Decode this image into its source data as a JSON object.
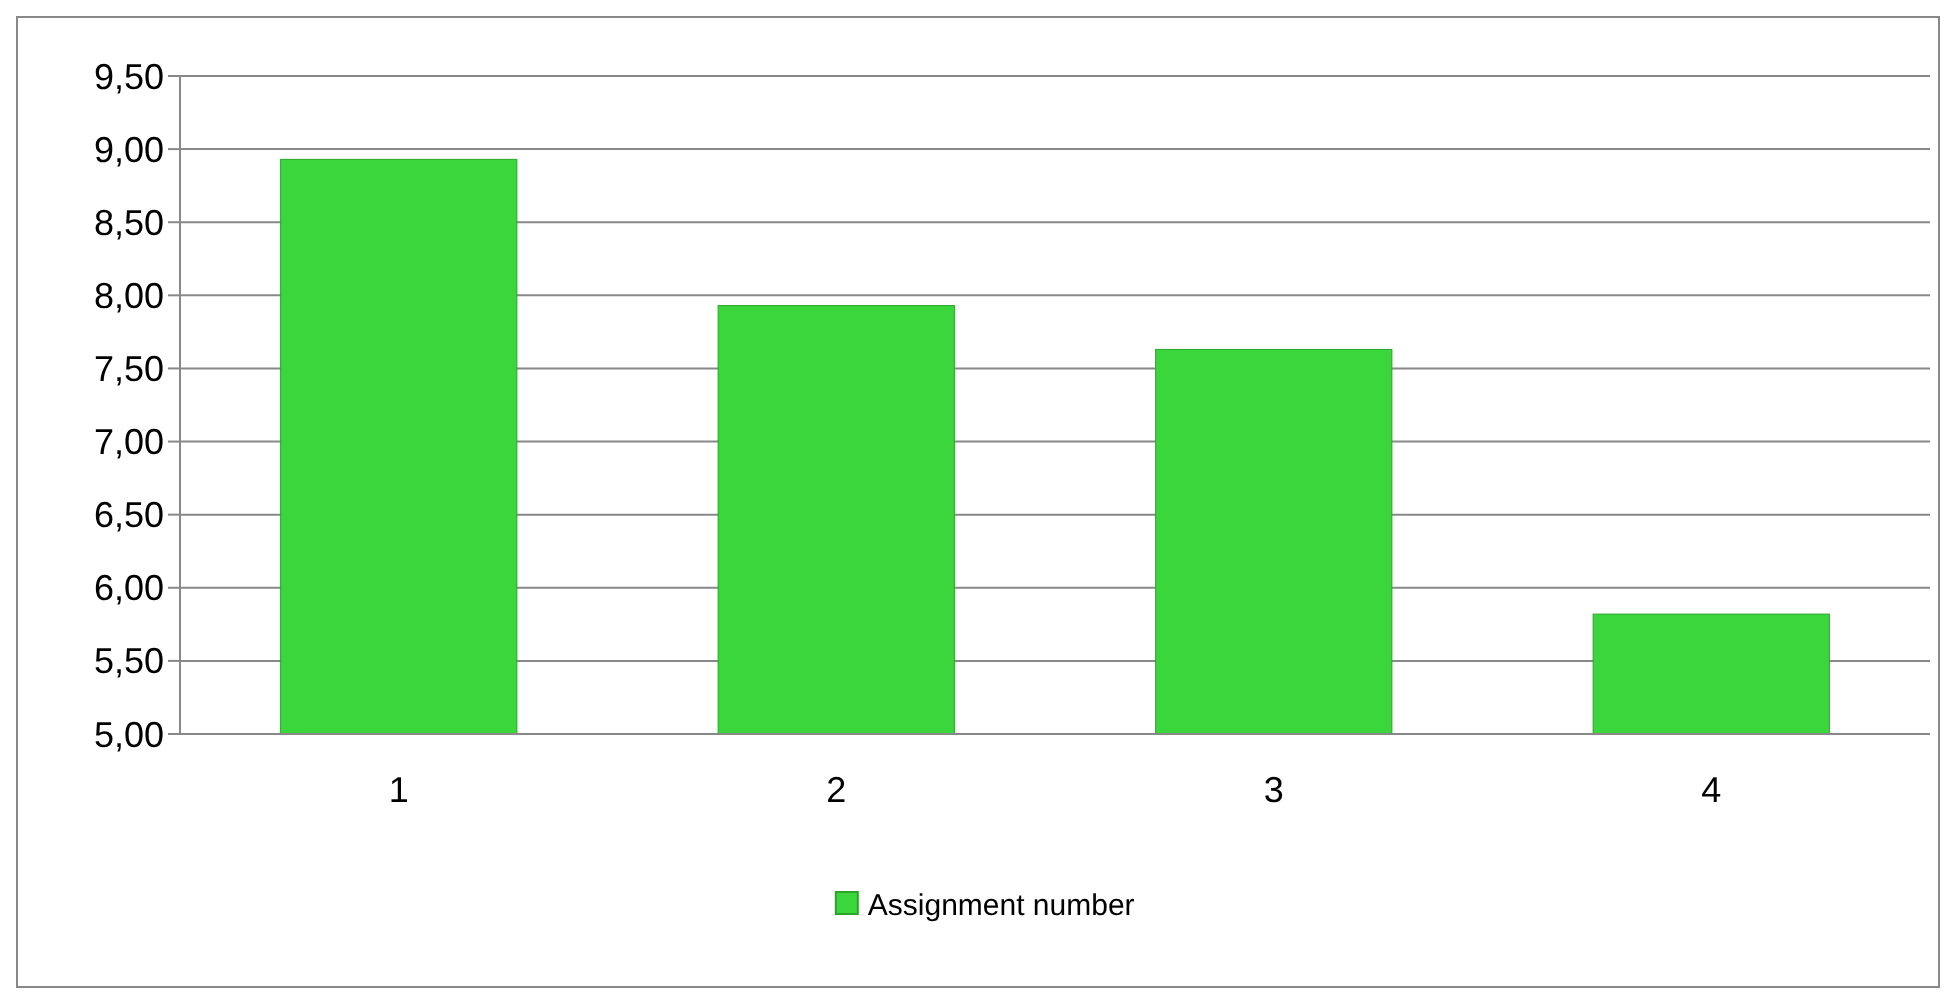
{
  "chart_data": {
    "type": "bar",
    "categories": [
      "1",
      "2",
      "3",
      "4"
    ],
    "series": [
      {
        "name": "Assignment number",
        "color": "#3bd63b",
        "values": [
          8.93,
          7.93,
          7.63,
          5.82
        ]
      }
    ],
    "ylim": [
      5,
      9.5
    ],
    "yticks": [
      {
        "value": 5,
        "label": "5,00"
      },
      {
        "value": 5.5,
        "label": "5,50"
      },
      {
        "value": 6,
        "label": "6,00"
      },
      {
        "value": 6.5,
        "label": "6,50"
      },
      {
        "value": 7,
        "label": "7,00"
      },
      {
        "value": 7.5,
        "label": "7,50"
      },
      {
        "value": 8,
        "label": "8,00"
      },
      {
        "value": 8.5,
        "label": "8,50"
      },
      {
        "value": 9,
        "label": "9,00"
      },
      {
        "value": 9.5,
        "label": "9,50"
      }
    ],
    "grid": "y",
    "legend": "bottom"
  }
}
